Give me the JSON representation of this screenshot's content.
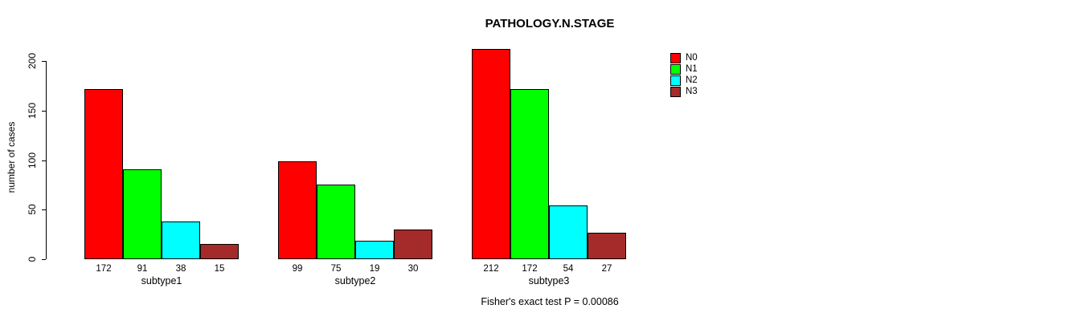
{
  "chart_data": {
    "type": "bar",
    "title": "PATHOLOGY.N.STAGE",
    "ylabel": "number of cases",
    "xlabel": "",
    "categories": [
      "subtype1",
      "subtype2",
      "subtype3"
    ],
    "series": [
      {
        "name": "N0",
        "color": "#ff0000",
        "values": [
          172,
          99,
          212
        ]
      },
      {
        "name": "N1",
        "color": "#00ff00",
        "values": [
          91,
          75,
          172
        ]
      },
      {
        "name": "N2",
        "color": "#00ffff",
        "values": [
          38,
          19,
          54
        ]
      },
      {
        "name": "N3",
        "color": "#a52a2a",
        "values": [
          15,
          30,
          27
        ]
      }
    ],
    "bar_value_labels": [
      [
        172,
        91,
        38,
        15
      ],
      [
        99,
        75,
        19,
        30
      ],
      [
        212,
        172,
        54,
        27
      ]
    ],
    "yticks": [
      0,
      50,
      100,
      150,
      200
    ],
    "ylim": [
      0,
      200
    ],
    "grid": false,
    "legend_position": "top-right",
    "annotation": "Fisher's exact test P = 0.00086",
    "text_color": "#000000",
    "background_color": "#ffffff"
  }
}
